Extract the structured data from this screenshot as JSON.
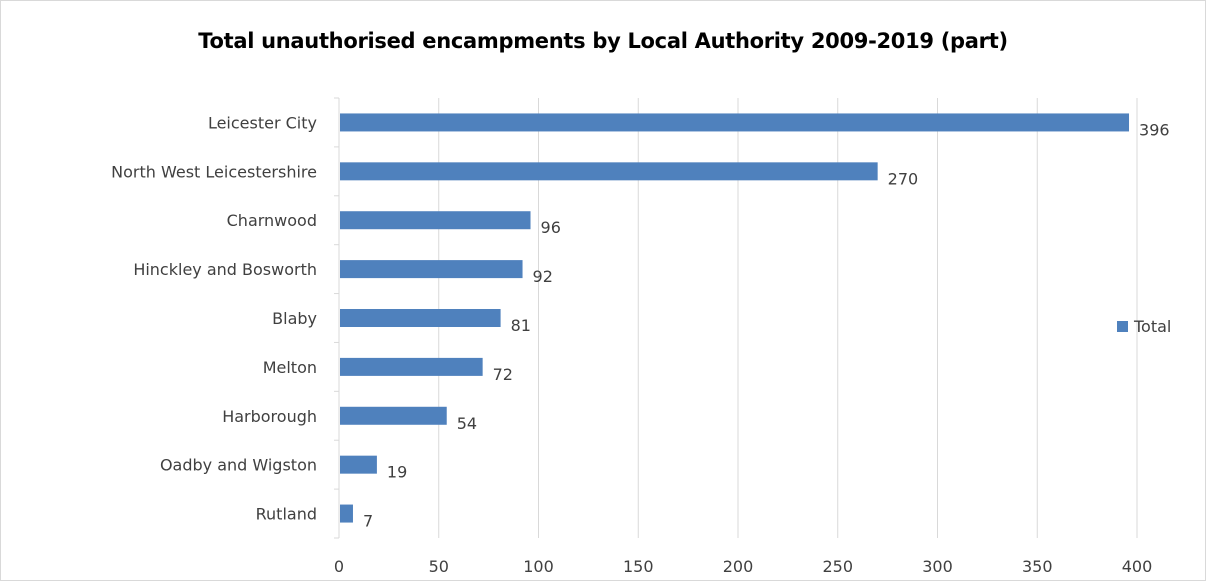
{
  "chart_data": {
    "type": "bar",
    "orientation": "horizontal",
    "title": "Total unauthorised encampments by Local Authority 2009-2019 (part)",
    "xlabel": "",
    "ylabel": "",
    "categories": [
      "Leicester City",
      "North West Leicestershire",
      "Charnwood",
      "Hinckley and Bosworth",
      "Blaby",
      "Melton",
      "Harborough",
      "Oadby and Wigston",
      "Rutland"
    ],
    "series": [
      {
        "name": "Total",
        "values": [
          396,
          270,
          96,
          92,
          81,
          72,
          54,
          19,
          7
        ],
        "color": "#4f81bd"
      }
    ],
    "xlim": [
      0,
      400
    ],
    "x_ticks": [
      0,
      50,
      100,
      150,
      200,
      250,
      300,
      350,
      400
    ],
    "data_labels": true,
    "grid": "vertical",
    "legend_position": "right",
    "colors": {
      "bar": "#4f81bd",
      "grid": "#d9d9d9",
      "text": "#404040",
      "title": "#000000"
    }
  }
}
